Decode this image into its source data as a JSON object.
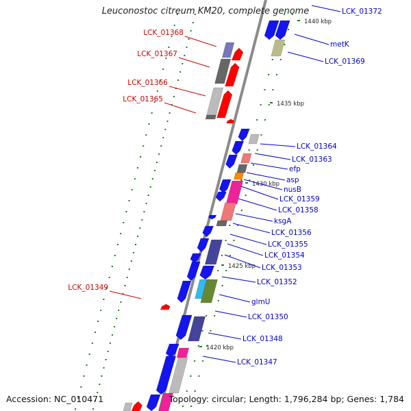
{
  "title": "Leuconostoc citreum KM20, complete genome",
  "footer": {
    "accession": "Accession: NC_010471",
    "summary": "Topology: circular; Length: 1,796,284 bp; Genes: 1,784"
  },
  "colors": {
    "backbone": "#8a8a8a",
    "forward_label": "#0000cc",
    "reverse_label": "#cc0000",
    "tick": "#1a7a1a"
  },
  "ruler": [
    {
      "label": "1440 kbp"
    },
    {
      "label": "1435 kbp"
    },
    {
      "label": "1430 kbp"
    },
    {
      "label": "1425 kbp"
    },
    {
      "label": "1420 kbp"
    }
  ],
  "right_labels": [
    "LCK_01372",
    "metK",
    "LCK_01369",
    "LCK_01364",
    "LCK_01363",
    "efp",
    "asp",
    "nusB",
    "LCK_01359",
    "LCK_01358",
    "ksgA",
    "LCK_01356",
    "LCK_01355",
    "LCK_01354",
    "LCK_01353",
    "LCK_01352",
    "glmU",
    "LCK_01350",
    "LCK_01348",
    "LCK_01347"
  ],
  "left_labels": [
    "LCK_01368",
    "LCK_01367",
    "LCK_01366",
    "LCK_01365",
    "LCK_01349"
  ]
}
